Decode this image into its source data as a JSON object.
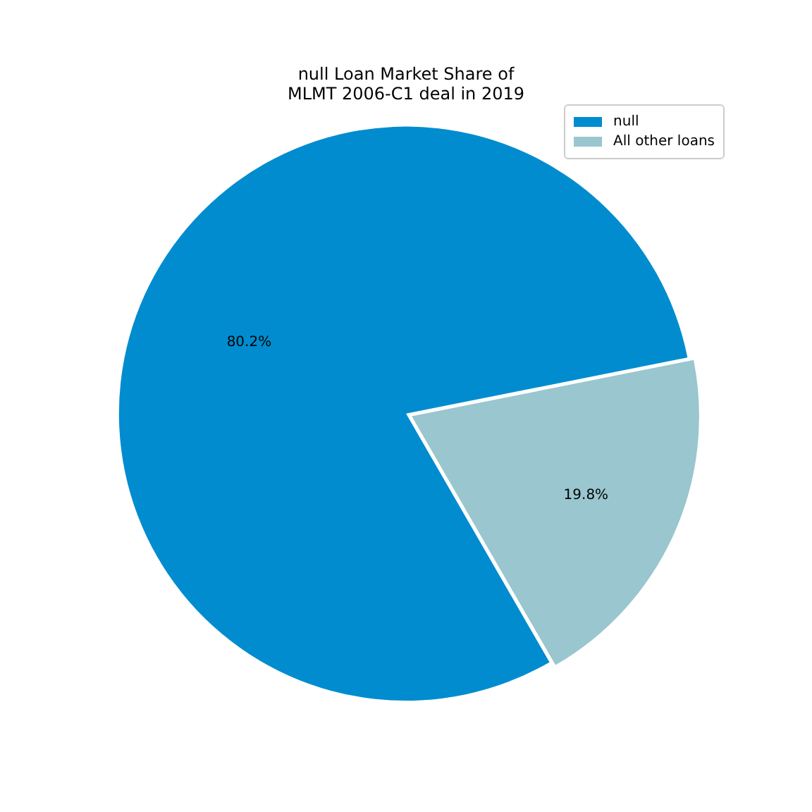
{
  "chart_data": {
    "type": "pie",
    "title": "null Loan Market Share of\nMLMT 2006-C1 deal in 2019",
    "categories": [
      "null",
      "All other loans"
    ],
    "values": [
      80.2,
      19.8
    ],
    "colors": [
      "#008ccf",
      "#99c6cf"
    ],
    "value_labels": [
      "80.2%",
      "19.8%"
    ],
    "legend": "top right"
  }
}
